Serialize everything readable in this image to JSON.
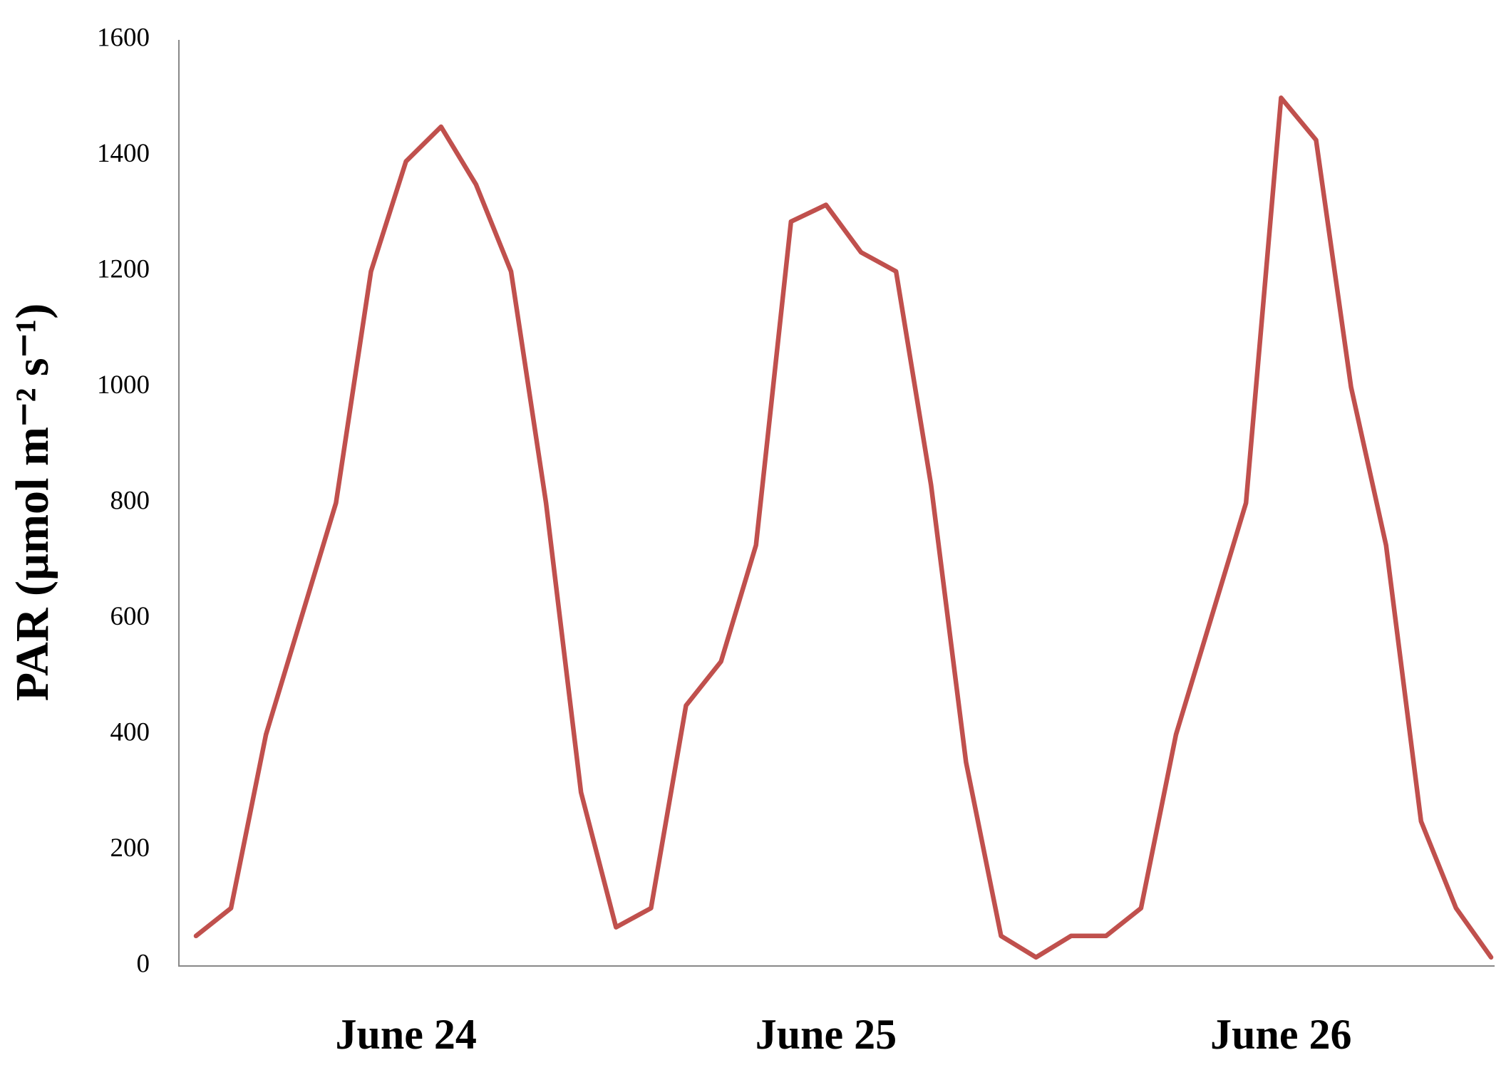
{
  "chart_data": {
    "type": "line",
    "y_label": "PAR (µmol m⁻² s⁻¹)",
    "categories": [
      null,
      null,
      null,
      null,
      null,
      null,
      "June 24",
      null,
      null,
      null,
      null,
      null,
      null,
      null,
      null,
      null,
      null,
      null,
      "June 25",
      null,
      null,
      null,
      null,
      null,
      null,
      null,
      null,
      null,
      null,
      null,
      null,
      "June 26",
      null,
      null,
      null,
      null,
      null,
      null
    ],
    "values": [
      52,
      100,
      400,
      600,
      800,
      1200,
      1390,
      1450,
      1350,
      1200,
      800,
      300,
      67,
      100,
      450,
      526,
      727,
      1286,
      1315,
      1233,
      1200,
      831,
      352,
      52,
      15,
      52,
      52,
      100,
      400,
      600,
      800,
      1500,
      1427,
      1000,
      727,
      250,
      100,
      15
    ],
    "color": "#c0504d",
    "ylim": [
      0,
      1600
    ],
    "yticks": [
      0,
      200,
      400,
      600,
      800,
      1000,
      1200,
      1400,
      1600
    ],
    "grid": false
  }
}
